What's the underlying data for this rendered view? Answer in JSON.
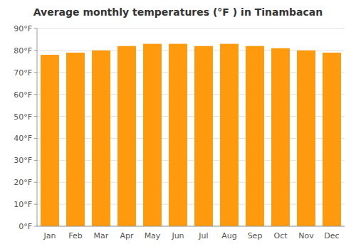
{
  "chart_data": {
    "type": "bar",
    "title": "Average monthly temperatures (°F ) in Tinambacan",
    "categories": [
      "Jan",
      "Feb",
      "Mar",
      "Apr",
      "May",
      "Jun",
      "Jul",
      "Aug",
      "Sep",
      "Oct",
      "Nov",
      "Dec"
    ],
    "values": [
      78,
      79,
      80,
      82,
      83,
      83,
      82,
      83,
      82,
      81,
      80,
      79
    ],
    "color": "#ff990d",
    "ylim": [
      0,
      90
    ],
    "yticks": [
      {
        "value": 0,
        "label": "0°F"
      },
      {
        "value": 10,
        "label": "10°F"
      },
      {
        "value": 20,
        "label": "20°F"
      },
      {
        "value": 30,
        "label": "30°F"
      },
      {
        "value": 40,
        "label": "40°F"
      },
      {
        "value": 50,
        "label": "50°F"
      },
      {
        "value": 60,
        "label": "60°F"
      },
      {
        "value": 70,
        "label": "70°F"
      },
      {
        "value": 80,
        "label": "80°F"
      },
      {
        "value": 90,
        "label": "90°F"
      }
    ],
    "grid": true
  }
}
